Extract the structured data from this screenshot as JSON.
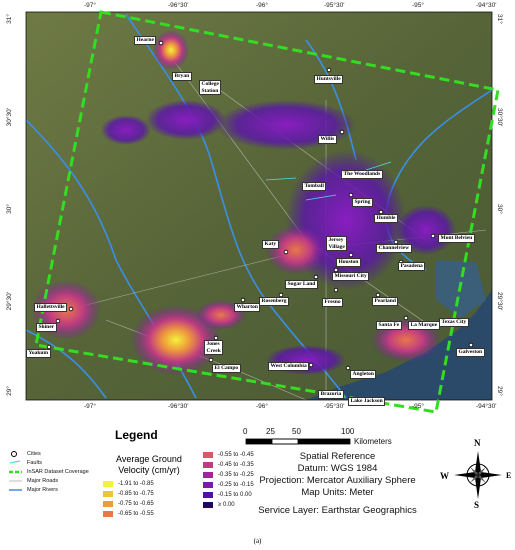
{
  "map": {
    "top_ticks": [
      "-97°",
      "-96°30'",
      "-96°",
      "-95°30'",
      "-95°",
      "-94°30'"
    ],
    "bottom_ticks": [
      "-97°",
      "-96°30'",
      "-96°",
      "-95°30'",
      "-95°",
      "-94°30'"
    ],
    "left_ticks": [
      "31°",
      "30°30'",
      "30°",
      "29°30'",
      "29°"
    ],
    "right_ticks": [
      "31°",
      "30°30'",
      "30°",
      "29°30'",
      "29°"
    ],
    "cities": [
      "Hearne",
      "Bryan",
      "College\nStation",
      "Huntsville",
      "Willis",
      "The Woodlands",
      "Tomball",
      "Spring",
      "Humble",
      "Katy",
      "Jersey\nVillage",
      "Channelview",
      "Mont Belvieu",
      "Houston",
      "Pasadena",
      "Missouri City",
      "Sugar Land",
      "Rosenberg",
      "Pearland",
      "Fresno",
      "Hallettsville",
      "Shiner",
      "Yoakum",
      "Wharton",
      "Jones\nCreek",
      "El Campo",
      "Santa Fe",
      "La Marque",
      "Texas City",
      "Galveston",
      "West Columbia",
      "Angleton",
      "Brazoria",
      "Lake Jackson"
    ]
  },
  "legend": {
    "title": "Legend",
    "items": [
      "Cities",
      "Faults",
      "InSAR Dataset Coverage",
      "Major Roads",
      "Major Rivers"
    ],
    "velocity_title": "Average Ground\nVelocity (cm/yr)",
    "classes": [
      {
        "label": "-1.91 to -0.85",
        "color": "#f2f23a"
      },
      {
        "label": "-0.85 to -0.75",
        "color": "#f5c13a"
      },
      {
        "label": "-0.75 to -0.65",
        "color": "#ef9a3c"
      },
      {
        "label": "-0.65 to -0.55",
        "color": "#e8784a"
      },
      {
        "label": "-0.55 to -0.45",
        "color": "#d8586a"
      },
      {
        "label": "-0.45 to -0.35",
        "color": "#c03c80"
      },
      {
        "label": "-0.35 to -0.25",
        "color": "#a0249a"
      },
      {
        "label": "-0.25 to -0.15",
        "color": "#7a18b0"
      },
      {
        "label": "-0.15 to 0.00",
        "color": "#4d12a8"
      },
      {
        "label": "≥ 0.00",
        "color": "#1e0a5a"
      }
    ]
  },
  "scalebar": {
    "ticks": [
      "0",
      "25",
      "50",
      "100"
    ],
    "unit": "Kilometers"
  },
  "spatial_reference": {
    "title": "Spatial Reference",
    "datum": "Datum: WGS 1984",
    "projection": "Projection: Mercator Auxiliary Sphere",
    "units": "Map Units: Meter",
    "service": "Service Layer: Earthstar Geographics"
  },
  "compass": {
    "n": "N",
    "s": "S",
    "e": "E",
    "w": "W"
  },
  "caption": "(a)",
  "colors": {
    "coverage_outline": "#33dd22",
    "rivers": "#3a8fe8",
    "land": "#5c6b3e",
    "water": "#2b4a6a"
  }
}
